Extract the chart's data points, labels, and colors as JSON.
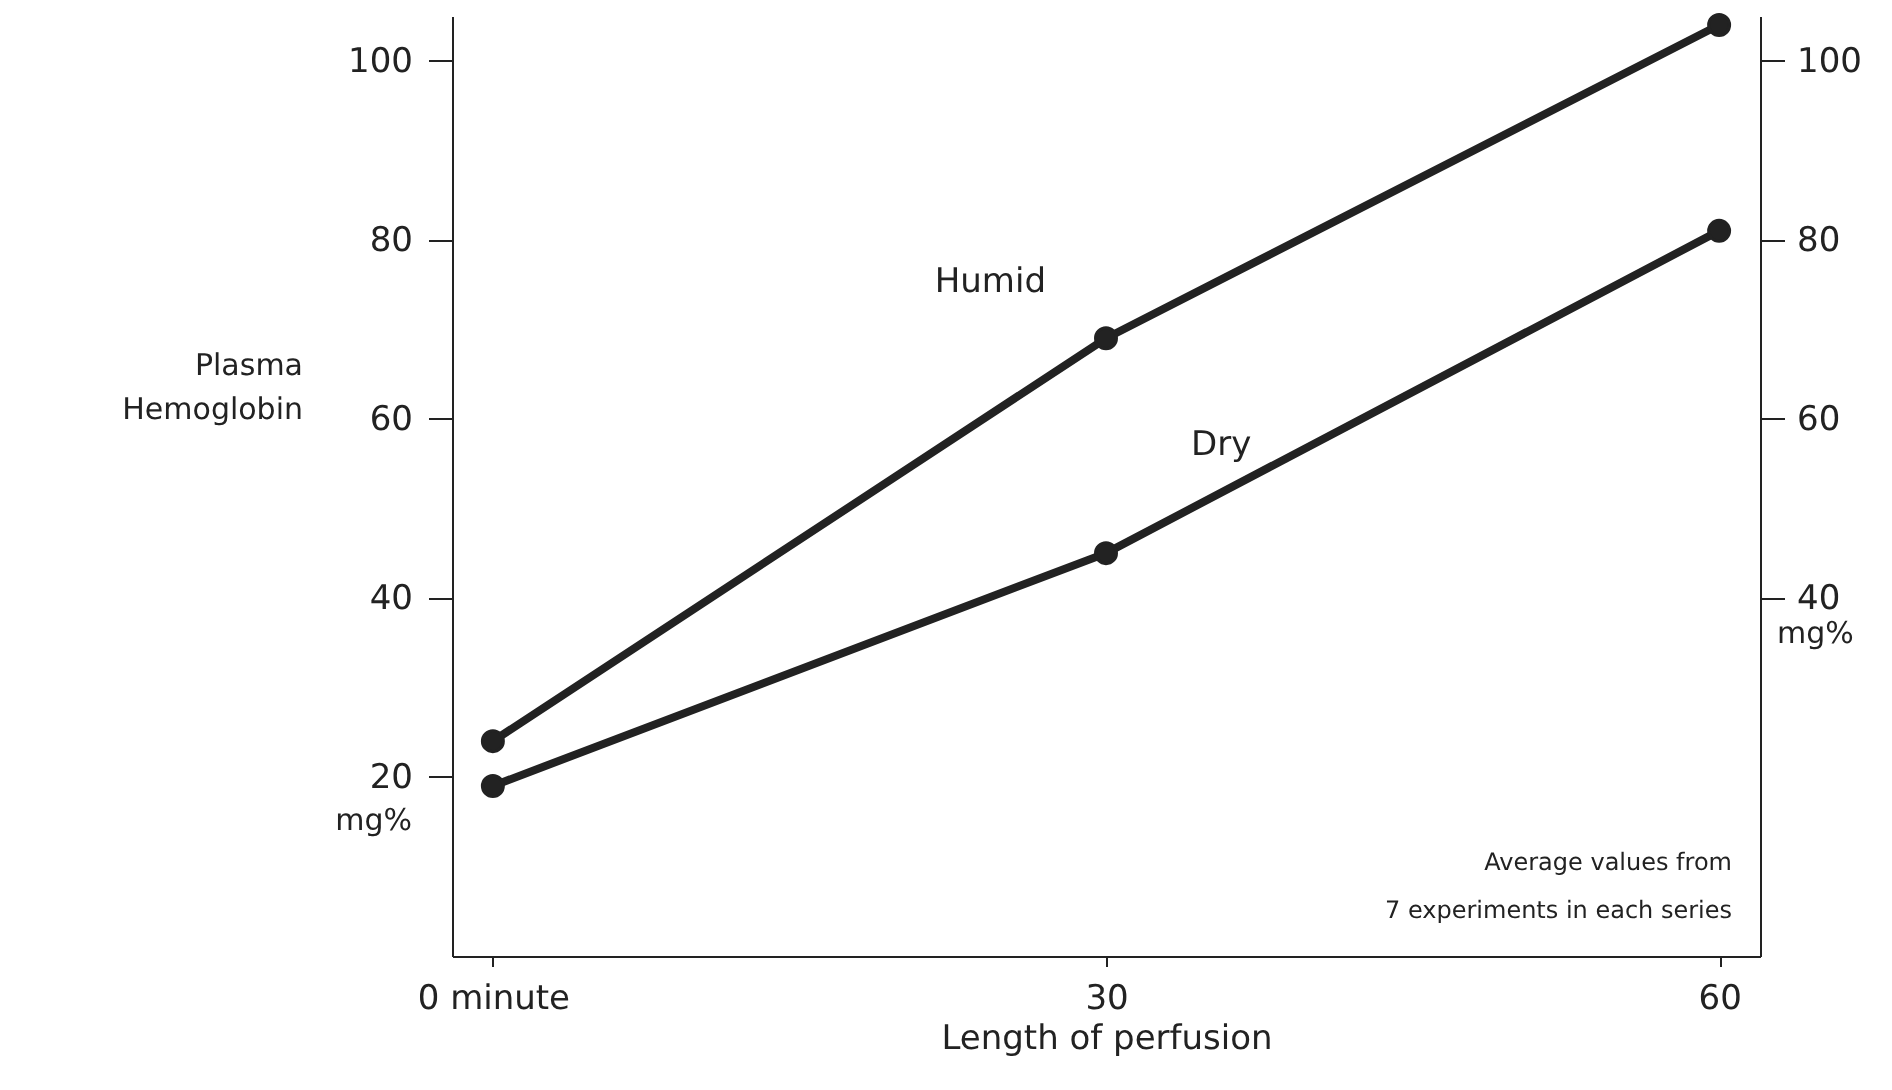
{
  "chart_data": {
    "type": "line",
    "xlabel": "Length of perfusion",
    "ylabel": "Plasma Hemoglobin",
    "y2label": "mg%",
    "x": [
      0,
      30,
      60
    ],
    "xlim": [
      -2,
      62
    ],
    "xticks": [
      {
        "value": 0,
        "label": "0  minute"
      },
      30,
      60
    ],
    "ylim": [
      0,
      105
    ],
    "yticks": [
      20,
      40,
      60,
      80,
      100
    ],
    "y2lim": [
      0,
      105
    ],
    "y2ticks": [
      40,
      60,
      80,
      100
    ],
    "marker": "circle",
    "line_style": "solid",
    "grid": false,
    "series": [
      {
        "name": "Humid",
        "color": "#222222",
        "values": [
          24,
          69,
          104
        ]
      },
      {
        "name": "Dry",
        "color": "#222222",
        "values": [
          19,
          45,
          81
        ]
      }
    ],
    "annotations": [
      "mg%",
      "Average values from\n7 experiments in each series"
    ]
  }
}
